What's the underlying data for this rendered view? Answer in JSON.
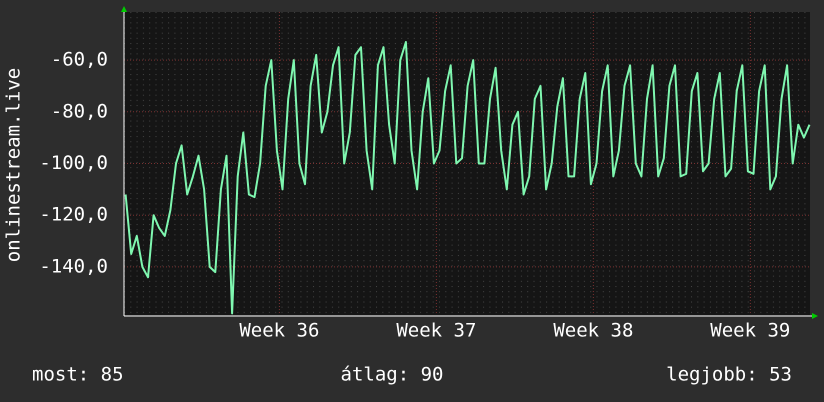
{
  "chart_data": {
    "type": "line",
    "y_label": "onlinestream.live",
    "x": [
      35.02,
      35.0557,
      35.0914,
      35.1271,
      35.1629,
      35.1986,
      35.2343,
      35.27,
      35.3057,
      35.3414,
      35.3771,
      35.4129,
      35.4486,
      35.4843,
      35.52,
      35.5557,
      35.5914,
      35.6271,
      35.6629,
      35.6986,
      35.7343,
      35.77,
      35.8057,
      35.8414,
      35.8771,
      35.9129,
      35.9486,
      35.9843,
      36.02,
      36.0557,
      36.0914,
      36.1271,
      36.1629,
      36.1986,
      36.2343,
      36.27,
      36.3057,
      36.3414,
      36.3771,
      36.4129,
      36.4486,
      36.4843,
      36.52,
      36.5557,
      36.5914,
      36.6271,
      36.6629,
      36.6986,
      36.7343,
      36.77,
      36.8057,
      36.8414,
      36.8771,
      36.9129,
      36.9486,
      36.9843,
      37.02,
      37.0557,
      37.0914,
      37.1271,
      37.1629,
      37.1986,
      37.2343,
      37.27,
      37.3057,
      37.3414,
      37.3771,
      37.4129,
      37.4486,
      37.4843,
      37.52,
      37.5557,
      37.5914,
      37.6271,
      37.6629,
      37.6986,
      37.7343,
      37.77,
      37.8057,
      37.8414,
      37.8771,
      37.9129,
      37.9486,
      37.9843,
      38.02,
      38.0557,
      38.0914,
      38.1271,
      38.1629,
      38.1986,
      38.2343,
      38.27,
      38.3057,
      38.3414,
      38.3771,
      38.4129,
      38.4486,
      38.4843,
      38.52,
      38.5557,
      38.5914,
      38.6271,
      38.6629,
      38.6986,
      38.7343,
      38.77,
      38.8057,
      38.8414,
      38.8771,
      38.9129,
      38.9486,
      38.9843,
      39.02,
      39.0557,
      39.0914,
      39.1271,
      39.1629,
      39.1986,
      39.2343,
      39.27,
      39.3057,
      39.3414,
      39.3771
    ],
    "values": [
      -112,
      -135,
      -128,
      -140,
      -144,
      -120,
      -125,
      -128,
      -118,
      -100,
      -93,
      -112,
      -105,
      -97,
      -110,
      -140,
      -142,
      -110,
      -97,
      -158,
      -105,
      -88,
      -112,
      -113,
      -100,
      -70,
      -60,
      -95,
      -110,
      -75,
      -60,
      -100,
      -108,
      -70,
      -58,
      -88,
      -80,
      -62,
      -55,
      -100,
      -88,
      -58,
      -55,
      -95,
      -110,
      -62,
      -55,
      -85,
      -100,
      -60,
      -53,
      -95,
      -110,
      -80,
      -67,
      -100,
      -95,
      -72,
      -62,
      -100,
      -98,
      -70,
      -60,
      -100,
      -100,
      -75,
      -63,
      -95,
      -110,
      -85,
      -80,
      -112,
      -105,
      -75,
      -70,
      -110,
      -100,
      -78,
      -67,
      -105,
      -105,
      -75,
      -65,
      -108,
      -100,
      -72,
      -62,
      -105,
      -95,
      -70,
      -62,
      -100,
      -105,
      -75,
      -62,
      -105,
      -98,
      -70,
      -62,
      -105,
      -104,
      -72,
      -65,
      -103,
      -100,
      -75,
      -65,
      -105,
      -102,
      -72,
      -62,
      -103,
      -104,
      -72,
      -62,
      -110,
      -105,
      -75,
      -62,
      -100,
      -85,
      -90,
      -85
    ],
    "color": "#7ff7b0",
    "xlim": [
      35.01,
      39.38
    ],
    "xticks": [
      {
        "value": 36,
        "label": "Week 36"
      },
      {
        "value": 37,
        "label": "Week 37"
      },
      {
        "value": 38,
        "label": "Week 38"
      },
      {
        "value": 39,
        "label": "Week 39"
      }
    ],
    "ylim": [
      -158.6,
      -41.4
    ],
    "yticks": [
      {
        "value": -140,
        "label": "-140,0"
      },
      {
        "value": -120,
        "label": "-120,0"
      },
      {
        "value": -100,
        "label": "-100,0"
      },
      {
        "value": -80,
        "label": "-80,0"
      },
      {
        "value": -60,
        "label": "-60,0"
      }
    ],
    "grid": true,
    "footer": [
      "most: 85",
      "átlag: 90",
      "legjobb: 53"
    ]
  }
}
